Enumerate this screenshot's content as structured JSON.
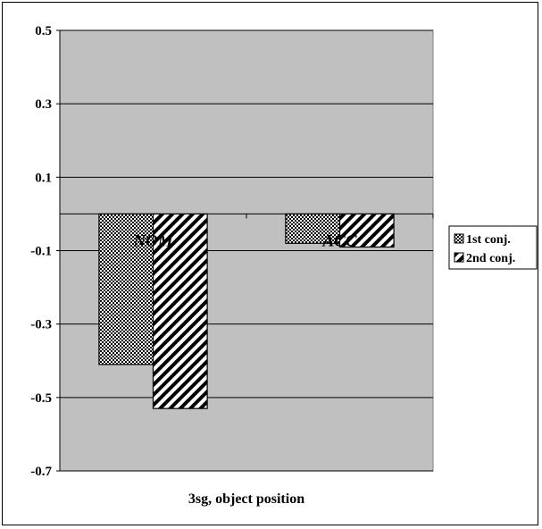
{
  "chart_data": {
    "type": "bar",
    "title": "",
    "xlabel": "3sg, object position",
    "ylabel": "",
    "categories": [
      "NOM",
      "ACC"
    ],
    "series": [
      {
        "name": "1st conj.",
        "values": [
          -0.41,
          -0.08
        ]
      },
      {
        "name": "2nd conj.",
        "values": [
          -0.53,
          -0.09
        ]
      }
    ],
    "ylim": [
      -0.7,
      0.5
    ],
    "yticks": [
      "0.5",
      "0.3",
      "0.1",
      "-0.1",
      "-0.3",
      "-0.5",
      "-0.7"
    ],
    "grid": true,
    "legend_position": "right",
    "colors": {
      "plot_background": "#c0c0c0",
      "gridline": "#000000",
      "bar_border": "#000000"
    }
  }
}
